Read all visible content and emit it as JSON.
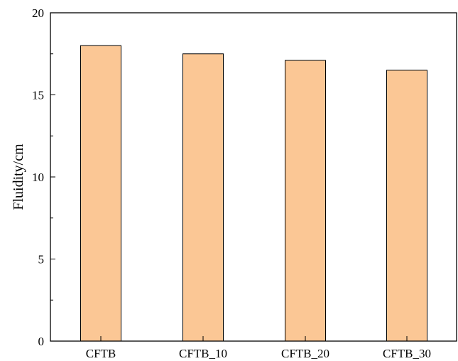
{
  "chart_data": {
    "type": "bar",
    "title": "",
    "xlabel": "",
    "ylabel": "Fluidity/cm",
    "categories": [
      "CFTB",
      "CFTB_10",
      "CFTB_20",
      "CFTB_30"
    ],
    "values": [
      18.0,
      17.5,
      17.1,
      16.5
    ],
    "ylim": [
      0,
      20
    ],
    "yticks": [
      "0",
      "5",
      "10",
      "15",
      "20"
    ],
    "grid": false,
    "legend": "none",
    "colors": {
      "bar_fill": "#fbc795",
      "bar_stroke": "#000000",
      "axis": "#000000"
    }
  }
}
